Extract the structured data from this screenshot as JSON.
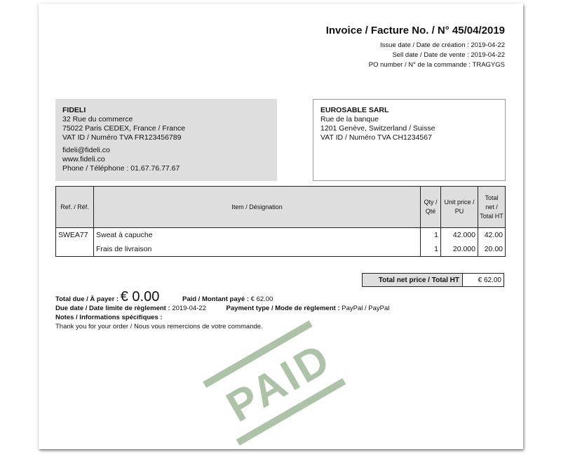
{
  "invoice": {
    "title": "Invoice / Facture No. / N° 45/04/2019",
    "issue_date": "Issue date / Date de création : 2019-04-22",
    "sell_date": "Sell date / Date de vente : 2019-04-22",
    "po_number": "PO number / N° de la commande : TRAGYGS"
  },
  "seller": {
    "name": "FIDELI",
    "address": "32 Rue du commerce",
    "city": "75022 Paris CEDEX, France / France",
    "vat": "VAT ID / Numéro TVA FR123456789",
    "email": "fideli@fideli.co",
    "web": "www.fideli.co",
    "phone": "Phone / Téléphone : 01.67.76.77.67"
  },
  "buyer": {
    "name": "EUROSABLE SARL",
    "address": "Rue de la banque",
    "city": "1201 Genève, Switzerland / Suisse",
    "vat": "VAT ID / Numéro TVA CH1234567"
  },
  "table": {
    "headers": [
      "Ref. / Réf.",
      "Item / Désignation",
      "Qty / Qté",
      "Unit price / PU",
      "Total net / Total HT"
    ],
    "rows": [
      {
        "ref": "SWEA77",
        "item": "Sweat à capuche",
        "qty": "1",
        "unit": "42.000",
        "total": "42.00"
      },
      {
        "ref": "",
        "item": "Frais de livraison",
        "qty": "1",
        "unit": "20.000",
        "total": "20.00"
      }
    ]
  },
  "totals": {
    "label": "Total net price / Total HT",
    "value": "€ 62.00"
  },
  "payment": {
    "due_label": "Total due / À payer :",
    "due_value": "€ 0.00",
    "paid_label": "Paid / Montant payé :",
    "paid_value": "€ 62.00",
    "due_date_label": "Due date / Date limite de règlement :",
    "due_date": "2019-04-22",
    "type_label": "Payment type / Mode de règlement :",
    "type_value": "PayPal / PayPal",
    "notes_label": "Notes / Informations spécifiques :",
    "notes": "Thank you for your order / Nous vous remercions de votre commande."
  },
  "stamp": {
    "text": "PAID",
    "color": "#9fb99a"
  }
}
